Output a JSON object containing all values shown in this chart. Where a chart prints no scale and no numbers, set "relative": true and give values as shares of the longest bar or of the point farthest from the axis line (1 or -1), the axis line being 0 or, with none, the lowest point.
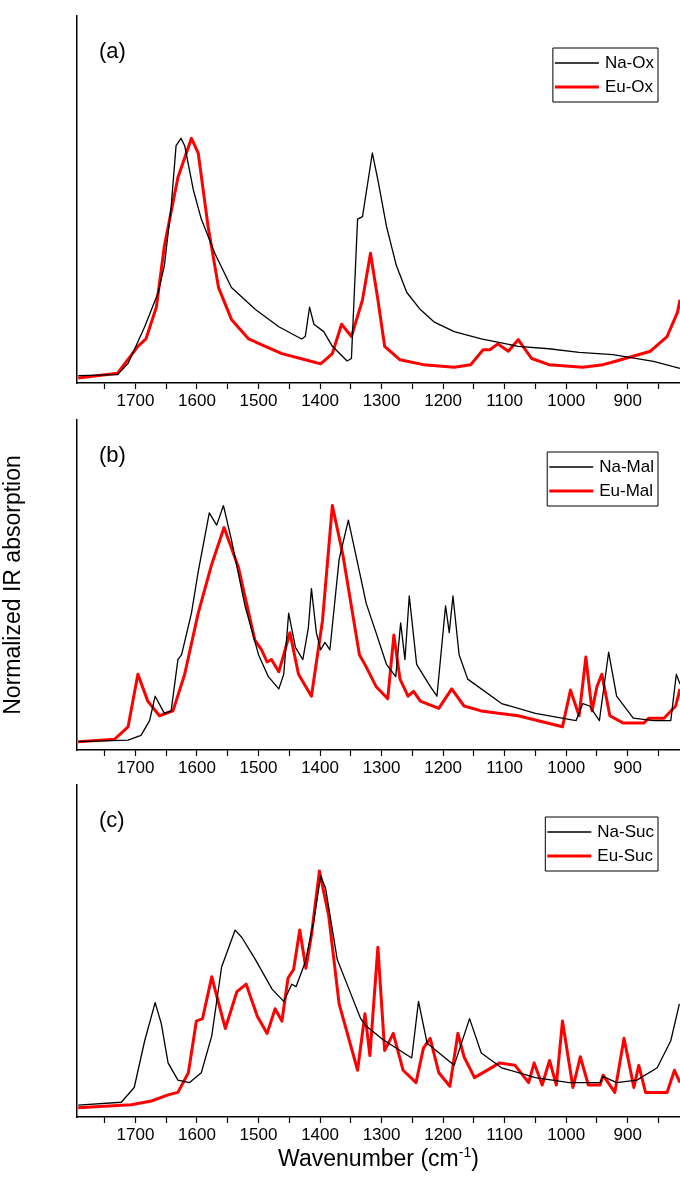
{
  "chart_data": [
    {
      "type": "line",
      "annotations": [
        "(a)"
      ],
      "relative": true,
      "marker": "none",
      "legend": "top right",
      "tick_labels": "x",
      "xlim": [
        1795,
        815
      ],
      "xticks": [
        {
          "value": 1750,
          "label": null
        },
        1700,
        {
          "value": 1650,
          "label": null
        },
        1600,
        {
          "value": 1550,
          "label": null
        },
        1500,
        {
          "value": 1450,
          "label": null
        },
        1400,
        {
          "value": 1350,
          "label": null
        },
        1300,
        {
          "value": 1250,
          "label": null
        },
        1200,
        {
          "value": 1150,
          "label": null
        },
        1100,
        {
          "value": 1050,
          "label": null
        },
        1000,
        {
          "value": 950,
          "label": null
        },
        900,
        {
          "value": 850,
          "label": null
        }
      ],
      "series": [
        {
          "name": "Na-Ox",
          "color": "#000000",
          "x": [
            1793,
            1729,
            1712,
            1685,
            1663,
            1653,
            1642,
            1634,
            1626,
            1620,
            1606,
            1593,
            1571,
            1544,
            1505,
            1467,
            1430,
            1424,
            1417,
            1410,
            1394,
            1380,
            1356,
            1349,
            1339,
            1331,
            1315,
            1306,
            1292,
            1276,
            1259,
            1237,
            1215,
            1182,
            1138,
            1078,
            1028,
            979,
            924,
            858,
            815
          ],
          "values": [
            0.03,
            0.034,
            0.08,
            0.23,
            0.37,
            0.48,
            0.72,
            0.97,
            1.0,
            0.97,
            0.79,
            0.67,
            0.53,
            0.39,
            0.3,
            0.23,
            0.18,
            0.19,
            0.31,
            0.24,
            0.21,
            0.15,
            0.09,
            0.1,
            0.67,
            0.68,
            0.94,
            0.83,
            0.64,
            0.48,
            0.37,
            0.3,
            0.25,
            0.21,
            0.18,
            0.15,
            0.14,
            0.125,
            0.116,
            0.088,
            0.06
          ]
        },
        {
          "name": "Eu-Ox",
          "color": "#ff0000",
          "x": [
            1793,
            1729,
            1696,
            1683,
            1666,
            1653,
            1631,
            1609,
            1598,
            1582,
            1565,
            1544,
            1516,
            1489,
            1462,
            1424,
            1399,
            1380,
            1365,
            1349,
            1331,
            1318,
            1306,
            1295,
            1270,
            1232,
            1182,
            1155,
            1135,
            1124,
            1111,
            1094,
            1078,
            1056,
            1028,
            973,
            940,
            921,
            863,
            836,
            819,
            815
          ],
          "values": [
            0.02,
            0.04,
            0.15,
            0.18,
            0.31,
            0.56,
            0.84,
            1.0,
            0.94,
            0.64,
            0.39,
            0.26,
            0.18,
            0.15,
            0.12,
            0.095,
            0.078,
            0.12,
            0.24,
            0.19,
            0.34,
            0.53,
            0.34,
            0.15,
            0.095,
            0.075,
            0.064,
            0.075,
            0.136,
            0.136,
            0.16,
            0.13,
            0.177,
            0.1,
            0.075,
            0.064,
            0.075,
            0.088,
            0.13,
            0.19,
            0.29,
            0.34
          ]
        }
      ]
    },
    {
      "type": "line",
      "annotations": [
        "(b)"
      ],
      "relative": true,
      "marker": "none",
      "legend": "top right",
      "tick_labels": "x",
      "ylabel": "Normalized IR absorption",
      "xlim": [
        1795,
        815
      ],
      "xticks": [
        {
          "value": 1750,
          "label": null
        },
        1700,
        {
          "value": 1650,
          "label": null
        },
        1600,
        {
          "value": 1550,
          "label": null
        },
        1500,
        {
          "value": 1450,
          "label": null
        },
        1400,
        {
          "value": 1350,
          "label": null
        },
        1300,
        {
          "value": 1250,
          "label": null
        },
        1200,
        {
          "value": 1150,
          "label": null
        },
        1100,
        {
          "value": 1050,
          "label": null
        },
        1000,
        {
          "value": 950,
          "label": null
        },
        900,
        {
          "value": 850,
          "label": null
        }
      ],
      "series": [
        {
          "name": "Na-Mal",
          "color": "#000000",
          "x": [
            1793,
            1712,
            1691,
            1677,
            1668,
            1653,
            1642,
            1631,
            1625,
            1609,
            1598,
            1580,
            1568,
            1557,
            1544,
            1522,
            1500,
            1484,
            1467,
            1459,
            1451,
            1440,
            1428,
            1419,
            1414,
            1406,
            1399,
            1392,
            1384,
            1369,
            1354,
            1336,
            1325,
            1309,
            1292,
            1277,
            1269,
            1262,
            1255,
            1243,
            1221,
            1210,
            1196,
            1190,
            1184,
            1174,
            1160,
            1105,
            1050,
            984,
            973,
            962,
            946,
            931,
            918,
            891,
            858,
            830,
            821,
            815
          ],
          "values": [
            0.034,
            0.04,
            0.06,
            0.12,
            0.22,
            0.15,
            0.16,
            0.37,
            0.39,
            0.56,
            0.73,
            0.97,
            0.92,
            1.0,
            0.86,
            0.59,
            0.39,
            0.3,
            0.25,
            0.31,
            0.56,
            0.42,
            0.37,
            0.5,
            0.66,
            0.48,
            0.41,
            0.44,
            0.41,
            0.78,
            0.94,
            0.73,
            0.6,
            0.48,
            0.35,
            0.3,
            0.52,
            0.37,
            0.63,
            0.35,
            0.26,
            0.22,
            0.59,
            0.48,
            0.63,
            0.39,
            0.29,
            0.19,
            0.15,
            0.12,
            0.19,
            0.18,
            0.12,
            0.4,
            0.22,
            0.13,
            0.12,
            0.12,
            0.31,
            0.27
          ]
        },
        {
          "name": "Eu-Mal",
          "color": "#ff0000",
          "x": [
            1793,
            1734,
            1712,
            1696,
            1680,
            1661,
            1639,
            1620,
            1598,
            1576,
            1556,
            1533,
            1506,
            1495,
            1486,
            1479,
            1467,
            1459,
            1449,
            1435,
            1414,
            1396,
            1380,
            1363,
            1336,
            1325,
            1309,
            1290,
            1280,
            1270,
            1257,
            1248,
            1237,
            1207,
            1186,
            1166,
            1138,
            1078,
            1006,
            993,
            979,
            968,
            958,
            950,
            942,
            929,
            907,
            874,
            866,
            841,
            822,
            815
          ],
          "values": [
            0.034,
            0.044,
            0.095,
            0.31,
            0.2,
            0.14,
            0.16,
            0.31,
            0.56,
            0.76,
            0.91,
            0.75,
            0.45,
            0.41,
            0.36,
            0.37,
            0.32,
            0.39,
            0.48,
            0.31,
            0.22,
            0.53,
            1.0,
            0.8,
            0.39,
            0.34,
            0.26,
            0.21,
            0.47,
            0.29,
            0.22,
            0.24,
            0.2,
            0.17,
            0.25,
            0.18,
            0.16,
            0.14,
            0.095,
            0.245,
            0.14,
            0.38,
            0.16,
            0.26,
            0.31,
            0.14,
            0.11,
            0.11,
            0.13,
            0.13,
            0.18,
            0.25
          ]
        }
      ]
    },
    {
      "type": "line",
      "annotations": [
        "(c)"
      ],
      "relative": true,
      "marker": "none",
      "legend": "top right",
      "tick_labels": "x",
      "xlabel": "Wavenumber (cm$^{-1}$)",
      "xlim": [
        1795,
        815
      ],
      "xticks": [
        {
          "value": 1750,
          "label": null
        },
        1700,
        {
          "value": 1650,
          "label": null
        },
        1600,
        {
          "value": 1550,
          "label": null
        },
        1500,
        {
          "value": 1450,
          "label": null
        },
        1400,
        {
          "value": 1350,
          "label": null
        },
        1300,
        {
          "value": 1250,
          "label": null
        },
        1200,
        {
          "value": 1150,
          "label": null
        },
        1100,
        {
          "value": 1050,
          "label": null
        },
        1000,
        {
          "value": 950,
          "label": null
        },
        900,
        {
          "value": 850,
          "label": null
        }
      ],
      "series": [
        {
          "name": "Na-Suc",
          "color": "#000000",
          "x": [
            1793,
            1723,
            1702,
            1685,
            1668,
            1658,
            1647,
            1631,
            1612,
            1593,
            1576,
            1560,
            1538,
            1527,
            1505,
            1478,
            1459,
            1446,
            1439,
            1424,
            1410,
            1399,
            1391,
            1372,
            1353,
            1334,
            1325,
            1298,
            1251,
            1240,
            1226,
            1182,
            1157,
            1138,
            1105,
            1050,
            995,
            945,
            940,
            918,
            885,
            852,
            830,
            816
          ],
          "values": [
            0.048,
            0.06,
            0.12,
            0.31,
            0.465,
            0.38,
            0.22,
            0.15,
            0.14,
            0.18,
            0.33,
            0.61,
            0.76,
            0.73,
            0.64,
            0.52,
            0.47,
            0.54,
            0.53,
            0.63,
            0.8,
            0.98,
            0.93,
            0.64,
            0.52,
            0.4,
            0.37,
            0.315,
            0.24,
            0.47,
            0.3,
            0.21,
            0.4,
            0.26,
            0.2,
            0.16,
            0.14,
            0.14,
            0.165,
            0.14,
            0.15,
            0.2,
            0.31,
            0.46
          ]
        },
        {
          "name": "Eu-Suc",
          "color": "#ff0000",
          "x": [
            1793,
            1707,
            1674,
            1647,
            1631,
            1614,
            1601,
            1591,
            1576,
            1554,
            1535,
            1520,
            1502,
            1486,
            1473,
            1462,
            1452,
            1443,
            1433,
            1423,
            1414,
            1401,
            1386,
            1369,
            1339,
            1327,
            1319,
            1306,
            1295,
            1281,
            1265,
            1244,
            1232,
            1221,
            1207,
            1189,
            1176,
            1166,
            1149,
            1108,
            1083,
            1061,
            1052,
            1039,
            1027,
            1016,
            1006,
            989,
            977,
            964,
            945,
            940,
            921,
            906,
            890,
            882,
            871,
            836,
            824,
            815
          ],
          "values": [
            0.038,
            0.05,
            0.065,
            0.09,
            0.1,
            0.18,
            0.39,
            0.4,
            0.57,
            0.36,
            0.51,
            0.54,
            0.41,
            0.34,
            0.44,
            0.39,
            0.565,
            0.6,
            0.76,
            0.605,
            0.74,
            1.0,
            0.82,
            0.46,
            0.19,
            0.42,
            0.25,
            0.69,
            0.27,
            0.34,
            0.19,
            0.14,
            0.28,
            0.32,
            0.18,
            0.125,
            0.34,
            0.245,
            0.16,
            0.22,
            0.21,
            0.14,
            0.22,
            0.13,
            0.23,
            0.13,
            0.39,
            0.12,
            0.245,
            0.13,
            0.13,
            0.17,
            0.1,
            0.32,
            0.12,
            0.21,
            0.1,
            0.1,
            0.19,
            0.14
          ]
        }
      ]
    }
  ]
}
